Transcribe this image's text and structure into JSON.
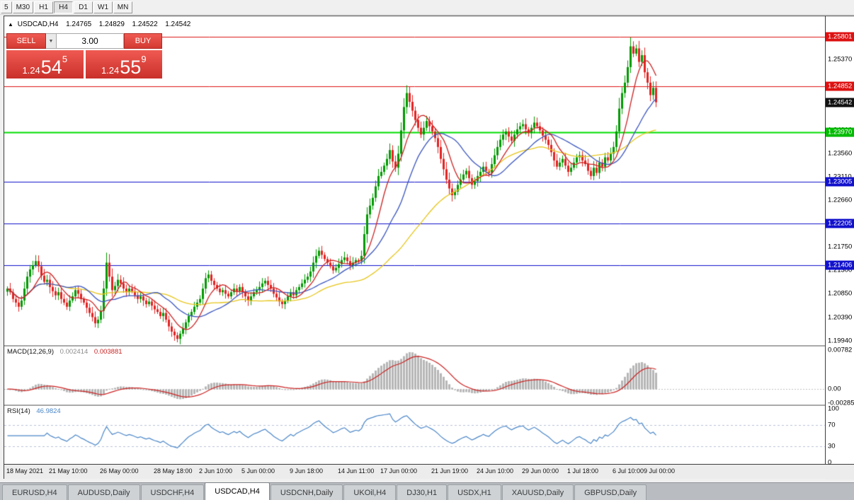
{
  "toolbar": {
    "buttons": [
      "5",
      "M30",
      "H1",
      "H4",
      "D1",
      "W1",
      "MN"
    ],
    "active": "H4"
  },
  "chart_header": {
    "collapse_icon": "▲",
    "symbol": "USDCAD,H4",
    "open": "1.24765",
    "high": "1.24829",
    "low": "1.24522",
    "close": "1.24542"
  },
  "trade_panel": {
    "sell_label": "SELL",
    "buy_label": "BUY",
    "volume": "3.00",
    "dropdown_icon": "▼",
    "sell_price": {
      "base": "1.24",
      "big": "54",
      "sup": "5"
    },
    "buy_price": {
      "base": "1.24",
      "big": "55",
      "sup": "9"
    }
  },
  "price_axis": {
    "decimals": 5,
    "ticks": [
      1.2537,
      1.2401,
      1.2356,
      1.2311,
      1.2266,
      1.2175,
      1.213,
      1.2085,
      1.2039,
      1.1994
    ],
    "line_labels": [
      {
        "price": 1.25801,
        "bg": "#dd1111"
      },
      {
        "price": 1.24852,
        "bg": "#dd1111"
      },
      {
        "price": 1.24542,
        "bg": "#111111"
      },
      {
        "price": 1.2397,
        "bg": "#00bb00"
      },
      {
        "price": 1.23005,
        "bg": "#1111cc"
      },
      {
        "price": 1.22205,
        "bg": "#1111cc"
      },
      {
        "price": 1.21406,
        "bg": "#1111cc"
      }
    ]
  },
  "macd_panel": {
    "name": "MACD(12,26,9)",
    "value_main": "0.002414",
    "value_signal": "0.003881",
    "ticks": [
      {
        "label": "0.00782",
        "value": 0.00782
      },
      {
        "label": "0.00",
        "value": 0
      },
      {
        "label": "-0.00285",
        "value": -0.00285
      }
    ],
    "range": [
      -0.0031,
      0.0085
    ],
    "colors": {
      "hist": "#b6b6b6",
      "signal": "#cc2222"
    }
  },
  "rsi_panel": {
    "name": "RSI(14)",
    "value": "46.9824",
    "ticks": [
      {
        "label": "100",
        "value": 100
      },
      {
        "label": "70",
        "value": 70
      },
      {
        "label": "30",
        "value": 30
      },
      {
        "label": "0",
        "value": 0
      }
    ],
    "range": [
      -2,
      105
    ],
    "levels": [
      70,
      30
    ],
    "color": "#4a86c8"
  },
  "time_axis": {
    "ticks": [
      {
        "label": "18 May 2021",
        "idx": 0
      },
      {
        "label": "21 May 10:00",
        "idx": 15
      },
      {
        "label": "26 May 00:00",
        "idx": 33
      },
      {
        "label": "28 May 18:00",
        "idx": 52
      },
      {
        "label": "2 Jun 10:00",
        "idx": 68
      },
      {
        "label": "5 Jun 00:00",
        "idx": 83
      },
      {
        "label": "9 Jun 18:00",
        "idx": 100
      },
      {
        "label": "14 Jun 11:00",
        "idx": 117
      },
      {
        "label": "17 Jun 00:00",
        "idx": 132
      },
      {
        "label": "21 Jun 19:00",
        "idx": 150
      },
      {
        "label": "24 Jun 10:00",
        "idx": 166
      },
      {
        "label": "29 Jun 00:00",
        "idx": 182
      },
      {
        "label": "1 Jul 18:00",
        "idx": 198
      },
      {
        "label": "6 Jul 10:00",
        "idx": 214
      },
      {
        "label": "9 Jul 00:00",
        "idx": 225
      }
    ]
  },
  "tabs": {
    "items": [
      "EURUSD,H4",
      "AUDUSD,Daily",
      "USDCHF,H4",
      "USDCAD,H4",
      "USDCNH,Daily",
      "UKOil,H4",
      "DJ30,H1",
      "USDX,H1",
      "XAUUSD,Daily",
      "GBPUSD,Daily"
    ],
    "active": "USDCAD,H4"
  },
  "chart_data": {
    "type": "candlestick",
    "title": "USDCAD,H4",
    "timeframe": "H4",
    "ylim": [
      1.1986,
      1.262
    ],
    "candle_spacing": 4,
    "x_offset": 3,
    "colors": {
      "up": "#009a00",
      "down": "#e32222",
      "ma_fast": "#cc2222",
      "ma_mid": "#3a55c0",
      "ma_slow": "#e6c519"
    },
    "ma_periods": {
      "fast": 8,
      "mid": 20,
      "slow": 50
    },
    "hlines": [
      {
        "price": 1.25801,
        "color": "#dd1111",
        "width": 1
      },
      {
        "price": 1.24852,
        "color": "#dd1111",
        "width": 1
      },
      {
        "price": 1.2397,
        "color": "#00dd00",
        "width": 2
      },
      {
        "price": 1.23005,
        "color": "#1111cc",
        "width": 1
      },
      {
        "price": 1.22205,
        "color": "#1111cc",
        "width": 1
      },
      {
        "price": 1.21406,
        "color": "#1111cc",
        "width": 1
      }
    ],
    "closes": [
      1.2095,
      1.2088,
      1.2075,
      1.2068,
      1.206,
      1.2072,
      1.2095,
      1.2118,
      1.2132,
      1.214,
      1.2148,
      1.2138,
      1.212,
      1.2108,
      1.2112,
      1.2098,
      1.209,
      1.2082,
      1.2088,
      1.2075,
      1.2068,
      1.206,
      1.2072,
      1.208,
      1.2092,
      1.2085,
      1.2075,
      1.2068,
      1.2058,
      1.2048,
      1.204,
      1.2028,
      1.2035,
      1.2052,
      1.2095,
      1.2145,
      1.2118,
      1.2092,
      1.21,
      1.2112,
      1.2105,
      1.2095,
      1.2088,
      1.2095,
      1.209,
      1.2082,
      1.2075,
      1.208,
      1.2072,
      1.2065,
      1.207,
      1.2062,
      1.2055,
      1.205,
      1.2042,
      1.2048,
      1.2035,
      1.2022,
      1.2012,
      1.2005,
      1.1998,
      1.2008,
      1.2018,
      1.203,
      1.2042,
      1.205,
      1.206,
      1.2068,
      1.2075,
      1.2095,
      1.2115,
      1.2122,
      1.211,
      1.2102,
      1.2095,
      1.2088,
      1.2092,
      1.2085,
      1.208,
      1.2088,
      1.2095,
      1.209,
      1.2098,
      1.2088,
      1.208,
      1.2072,
      1.208,
      1.2088,
      1.2092,
      1.2098,
      1.2105,
      1.211,
      1.2102,
      1.2095,
      1.2085,
      1.2078,
      1.207,
      1.2065,
      1.2072,
      1.208,
      1.2088,
      1.2082,
      1.2092,
      1.2098,
      1.2105,
      1.2112,
      1.2118,
      1.2128,
      1.2145,
      1.2158,
      1.2168,
      1.216,
      1.2152,
      1.2145,
      1.2138,
      1.213,
      1.2135,
      1.2142,
      1.215,
      1.2155,
      1.2148,
      1.214,
      1.2145,
      1.215,
      1.2148,
      1.2158,
      1.22,
      1.2238,
      1.2255,
      1.227,
      1.2292,
      1.2312,
      1.232,
      1.2332,
      1.2345,
      1.2362,
      1.234,
      1.2328,
      1.2355,
      1.24,
      1.2445,
      1.2472,
      1.2455,
      1.2438,
      1.242,
      1.2405,
      1.2392,
      1.2405,
      1.2418,
      1.2408,
      1.2398,
      1.2385,
      1.2368,
      1.2345,
      1.2325,
      1.2305,
      1.2288,
      1.2275,
      1.2282,
      1.2295,
      1.2305,
      1.2315,
      1.2322,
      1.2308,
      1.2295,
      1.2302,
      1.2312,
      1.232,
      1.233,
      1.2322,
      1.2318,
      1.2335,
      1.2352,
      1.2368,
      1.2382,
      1.2392,
      1.2398,
      1.2388,
      1.238,
      1.2392,
      1.2402,
      1.2408,
      1.2412,
      1.2402,
      1.2395,
      1.2405,
      1.2415,
      1.2408,
      1.24,
      1.239,
      1.2382,
      1.2372,
      1.2358,
      1.2342,
      1.233,
      1.2338,
      1.2345,
      1.2332,
      1.232,
      1.2328,
      1.2338,
      1.2348,
      1.2352,
      1.2342,
      1.2335,
      1.2322,
      1.2312,
      1.2328,
      1.2318,
      1.2338,
      1.233,
      1.2348,
      1.2342,
      1.2355,
      1.2368,
      1.2398,
      1.2442,
      1.2472,
      1.2492,
      1.2522,
      1.2562,
      1.2548,
      1.2558,
      1.2532,
      1.2545,
      1.2512,
      1.2492,
      1.2468,
      1.2482,
      1.24542
    ]
  }
}
